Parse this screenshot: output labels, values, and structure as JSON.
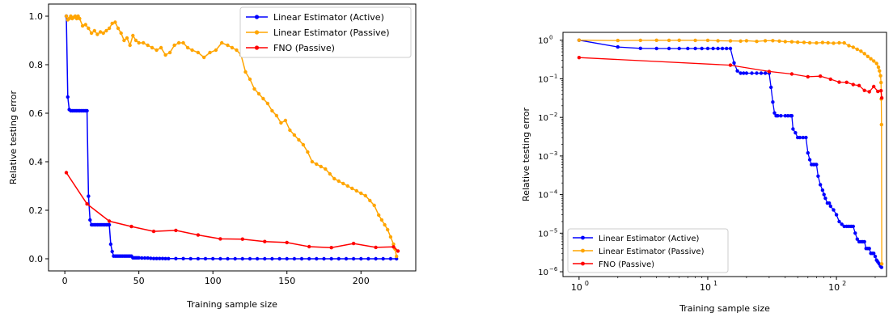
{
  "colors": {
    "active": "#0000ff",
    "passive": "#ffa500",
    "fno": "#ff0000"
  },
  "chart_data": [
    {
      "type": "line",
      "xlabel": "Training sample size",
      "ylabel": "Relative testing error",
      "xlim": [
        -11,
        237
      ],
      "ylim": [
        -0.05,
        1.05
      ],
      "x_ticks": [
        0,
        50,
        100,
        150,
        200
      ],
      "x_tick_labels": [
        "0",
        "50",
        "100",
        "150",
        "200"
      ],
      "y_ticks": [
        0.0,
        0.2,
        0.4,
        0.6,
        0.8,
        1.0
      ],
      "y_tick_labels": [
        "0.0",
        "0.2",
        "0.4",
        "0.6",
        "0.8",
        "1.0"
      ],
      "legend_position": "top-right",
      "series": [
        {
          "name": "Linear Estimator (Active)",
          "color_key": "active",
          "marker_size": 2.2,
          "x": [
            1,
            2,
            3,
            4,
            5,
            6,
            7,
            8,
            9,
            10,
            11,
            12,
            13,
            14,
            15,
            16,
            17,
            18,
            19,
            20,
            21,
            22,
            23,
            24,
            25,
            26,
            27,
            28,
            29,
            30,
            31,
            32,
            33,
            34,
            35,
            36,
            37,
            38,
            39,
            40,
            41,
            42,
            43,
            44,
            45,
            46,
            47,
            48,
            49,
            50,
            52,
            54,
            56,
            58,
            60,
            62,
            64,
            66,
            68,
            70,
            75,
            80,
            85,
            90,
            95,
            100,
            105,
            110,
            115,
            120,
            125,
            130,
            135,
            140,
            145,
            150,
            155,
            160,
            165,
            170,
            175,
            180,
            185,
            190,
            195,
            200,
            205,
            210,
            215,
            220,
            224
          ],
          "y": [
            1.0,
            0.667,
            0.615,
            0.61,
            0.61,
            0.61,
            0.61,
            0.61,
            0.61,
            0.61,
            0.61,
            0.61,
            0.61,
            0.61,
            0.61,
            0.258,
            0.16,
            0.14,
            0.14,
            0.14,
            0.14,
            0.14,
            0.14,
            0.14,
            0.14,
            0.14,
            0.14,
            0.14,
            0.14,
            0.14,
            0.06,
            0.03,
            0.011,
            0.011,
            0.011,
            0.011,
            0.011,
            0.011,
            0.011,
            0.011,
            0.011,
            0.011,
            0.011,
            0.011,
            0.011,
            0.004,
            0.004,
            0.004,
            0.004,
            0.004,
            0.003,
            0.003,
            0.003,
            0.002,
            0.001,
            0.001,
            0.001,
            0.001,
            0.0007,
            0.0006,
            0.0006,
            0.0006,
            0.0005,
            0.0003,
            0.0003,
            0.0002,
            0.00015,
            0.0001,
            0.0001,
            0.0001,
            6e-05,
            5e-05,
            4e-05,
            3e-05,
            3e-05,
            2e-05,
            2e-05,
            1e-05,
            1e-05,
            1e-05,
            1e-05,
            1e-05,
            1e-05,
            1e-05,
            1e-05,
            5e-06,
            4e-06,
            3e-06,
            2e-06,
            1.5e-06,
            1.4e-06
          ]
        },
        {
          "name": "Linear Estimator (Passive)",
          "color_key": "passive",
          "marker_size": 2.2,
          "x": [
            1,
            2,
            3,
            4,
            5,
            6,
            7,
            8,
            9,
            10,
            12,
            14,
            16,
            18,
            20,
            22,
            24,
            26,
            28,
            30,
            32,
            34,
            36,
            38,
            40,
            42,
            44,
            46,
            48,
            50,
            53,
            56,
            59,
            62,
            65,
            68,
            71,
            74,
            77,
            80,
            83,
            86,
            90,
            94,
            98,
            102,
            106,
            110,
            113,
            116,
            119,
            122,
            125,
            128,
            131,
            134,
            137,
            140,
            143,
            146,
            149,
            152,
            155,
            158,
            161,
            164,
            167,
            170,
            173,
            176,
            179,
            182,
            185,
            188,
            191,
            194,
            197,
            200,
            203,
            206,
            209,
            212,
            214,
            216,
            218,
            220,
            222,
            223,
            224
          ],
          "y": [
            1.0,
            0.985,
            0.99,
            1.0,
            0.99,
            0.995,
            1.0,
            0.99,
            1.0,
            0.99,
            0.96,
            0.965,
            0.95,
            0.93,
            0.94,
            0.925,
            0.935,
            0.93,
            0.94,
            0.95,
            0.97,
            0.975,
            0.95,
            0.93,
            0.9,
            0.91,
            0.88,
            0.92,
            0.9,
            0.89,
            0.89,
            0.88,
            0.87,
            0.86,
            0.87,
            0.84,
            0.85,
            0.88,
            0.89,
            0.89,
            0.87,
            0.86,
            0.85,
            0.83,
            0.85,
            0.86,
            0.89,
            0.88,
            0.87,
            0.86,
            0.84,
            0.77,
            0.74,
            0.7,
            0.68,
            0.66,
            0.64,
            0.61,
            0.59,
            0.56,
            0.57,
            0.53,
            0.51,
            0.49,
            0.47,
            0.44,
            0.4,
            0.39,
            0.38,
            0.37,
            0.35,
            0.33,
            0.32,
            0.31,
            0.3,
            0.29,
            0.28,
            0.27,
            0.26,
            0.24,
            0.22,
            0.18,
            0.16,
            0.14,
            0.12,
            0.09,
            0.06,
            0.04,
            0.01
          ]
        },
        {
          "name": "FNO (Passive)",
          "color_key": "fno",
          "marker_size": 2.2,
          "x": [
            1,
            15,
            30,
            45,
            60,
            75,
            90,
            105,
            120,
            135,
            150,
            165,
            180,
            195,
            210,
            222,
            225
          ],
          "y": [
            0.355,
            0.226,
            0.155,
            0.133,
            0.113,
            0.117,
            0.098,
            0.082,
            0.081,
            0.071,
            0.067,
            0.05,
            0.046,
            0.063,
            0.047,
            0.049,
            0.032
          ]
        }
      ]
    },
    {
      "type": "line",
      "xlabel": "Training sample size",
      "ylabel": "Relative testing error",
      "x_scale": "log",
      "y_scale": "log",
      "xlim": [
        0.75,
        245
      ],
      "ylim": [
        7.5e-07,
        1.6
      ],
      "x_ticks": [
        1,
        10,
        100
      ],
      "x_tick_labels": [
        "10",
        "10",
        "10"
      ],
      "x_tick_exponents": [
        "0",
        "1",
        "2"
      ],
      "y_ticks": [
        1e-06,
        1e-05,
        0.0001,
        0.001,
        0.01,
        0.1,
        1
      ],
      "y_tick_labels": [
        "10",
        "10",
        "10",
        "10",
        "10",
        "10",
        "10"
      ],
      "y_tick_exponents": [
        "−6",
        "−5",
        "−4",
        "−3",
        "−2",
        "−1",
        "0"
      ],
      "legend_position": "bottom-left",
      "series": [
        {
          "name": "Linear Estimator (Active)",
          "color_key": "active",
          "marker_size": 2.2,
          "x": [
            1,
            2,
            3,
            4,
            5,
            6,
            7,
            8,
            9,
            10,
            11,
            12,
            13,
            14,
            15,
            16,
            17,
            18,
            19,
            20,
            22,
            24,
            26,
            28,
            30,
            31,
            32,
            33,
            34,
            35,
            37,
            40,
            42,
            44,
            45,
            46,
            48,
            50,
            52,
            55,
            58,
            60,
            62,
            64,
            66,
            68,
            70,
            72,
            75,
            78,
            80,
            82,
            85,
            88,
            90,
            95,
            100,
            105,
            110,
            115,
            120,
            125,
            130,
            135,
            140,
            145,
            150,
            155,
            160,
            165,
            170,
            175,
            180,
            185,
            190,
            195,
            200,
            205,
            210,
            215,
            220,
            224
          ],
          "y": [
            1.0,
            0.667,
            0.615,
            0.61,
            0.61,
            0.61,
            0.61,
            0.61,
            0.61,
            0.61,
            0.61,
            0.61,
            0.61,
            0.61,
            0.61,
            0.258,
            0.16,
            0.14,
            0.14,
            0.14,
            0.14,
            0.14,
            0.14,
            0.14,
            0.14,
            0.06,
            0.025,
            0.013,
            0.011,
            0.011,
            0.011,
            0.011,
            0.011,
            0.011,
            0.011,
            0.005,
            0.004,
            0.003,
            0.003,
            0.003,
            0.003,
            0.0012,
            0.0008,
            0.0006,
            0.0006,
            0.0006,
            0.0006,
            0.0003,
            0.00018,
            0.00013,
            0.0001,
            8e-05,
            6e-05,
            6e-05,
            5e-05,
            4e-05,
            3e-05,
            2e-05,
            1.7e-05,
            1.5e-05,
            1.5e-05,
            1.5e-05,
            1.5e-05,
            1.5e-05,
            1e-05,
            7e-06,
            6e-06,
            6e-06,
            6e-06,
            6e-06,
            4e-06,
            4e-06,
            4e-06,
            3e-06,
            3e-06,
            3e-06,
            2.5e-06,
            2e-06,
            1.8e-06,
            1.6e-06,
            1.4e-06,
            1.3e-06
          ]
        },
        {
          "name": "Linear Estimator (Passive)",
          "color_key": "passive",
          "marker_size": 2.2,
          "x": [
            1,
            2,
            3,
            4,
            5,
            6,
            8,
            10,
            12,
            15,
            18,
            20,
            24,
            28,
            32,
            36,
            40,
            45,
            50,
            56,
            62,
            70,
            78,
            86,
            95,
            105,
            115,
            125,
            135,
            145,
            155,
            165,
            175,
            185,
            195,
            205,
            212,
            216,
            220,
            222,
            223,
            224,
            225
          ],
          "y": [
            1.0,
            0.985,
            0.99,
            0.995,
            0.99,
            0.995,
            0.99,
            0.99,
            0.97,
            0.96,
            0.95,
            0.97,
            0.93,
            0.97,
            0.975,
            0.95,
            0.92,
            0.91,
            0.89,
            0.88,
            0.86,
            0.85,
            0.87,
            0.86,
            0.84,
            0.86,
            0.85,
            0.72,
            0.66,
            0.58,
            0.52,
            0.45,
            0.38,
            0.33,
            0.29,
            0.25,
            0.2,
            0.16,
            0.12,
            0.08,
            0.03,
            0.0065,
            1.6e-06
          ]
        },
        {
          "name": "FNO (Passive)",
          "color_key": "fno",
          "marker_size": 2.2,
          "x": [
            1,
            15,
            30,
            45,
            60,
            75,
            90,
            105,
            120,
            135,
            150,
            165,
            180,
            195,
            210,
            222,
            225
          ],
          "y": [
            0.355,
            0.226,
            0.155,
            0.133,
            0.113,
            0.117,
            0.098,
            0.082,
            0.081,
            0.071,
            0.067,
            0.05,
            0.046,
            0.063,
            0.047,
            0.049,
            0.032
          ]
        }
      ]
    }
  ]
}
